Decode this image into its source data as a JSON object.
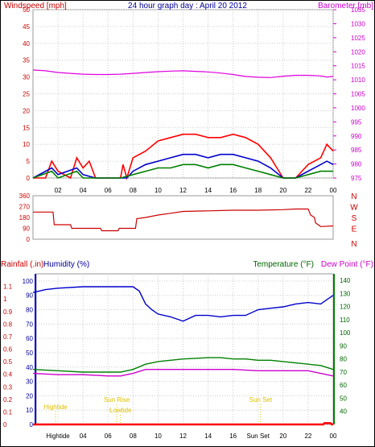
{
  "chart_data": [
    {
      "type": "line",
      "title": "24 hour graph day : April 20 2012",
      "ylabel": "Windspeed [mph]",
      "y2label": "Barometer [mb]",
      "ylim": [
        0,
        50
      ],
      "y2lim": [
        975,
        1035
      ],
      "xlim": [
        0,
        24
      ],
      "x_ticks": [
        "02",
        "04",
        "06",
        "08",
        "10",
        "12",
        "14",
        "16",
        "18",
        "20",
        "22",
        "00"
      ],
      "x_tick_hours": [
        2,
        4,
        6,
        8,
        10,
        12,
        14,
        16,
        18,
        20,
        22,
        24
      ],
      "y_ticks": [
        0,
        5,
        10,
        15,
        20,
        25,
        30,
        35,
        40,
        45,
        50
      ],
      "y2_ticks": [
        975,
        980,
        985,
        990,
        995,
        1000,
        1005,
        1010,
        1015,
        1020,
        1025,
        1030,
        1035
      ],
      "grid": true,
      "colors": {
        "gust": "#ff0000",
        "avg": "#0000cc",
        "low": "#008000",
        "barometer": "#e000e0"
      },
      "series": [
        {
          "axis": "right",
          "x": [
            0,
            1,
            2,
            3,
            4,
            5,
            6,
            7,
            8,
            9,
            10,
            11,
            12,
            13,
            14,
            15,
            16,
            17,
            18,
            19,
            20,
            21,
            22,
            23,
            23.5,
            24
          ],
          "values": [
            1013.5,
            1013.2,
            1012.6,
            1012.3,
            1012.0,
            1011.9,
            1011.9,
            1012.0,
            1012.3,
            1012.6,
            1012.9,
            1013.1,
            1013.2,
            1013.0,
            1012.8,
            1012.4,
            1011.9,
            1011.2,
            1010.9,
            1010.8,
            1011.3,
            1011.6,
            1011.6,
            1011.4,
            1011.0,
            1011.2
          ]
        },
        {
          "axis": "left",
          "x": [
            0,
            1,
            1.5,
            2,
            3,
            3.5,
            4,
            4.5,
            5,
            6,
            7,
            7.2,
            7.5,
            8,
            9,
            10,
            11,
            12,
            13,
            14,
            15,
            16,
            17,
            18,
            19,
            19.5,
            20,
            21,
            22,
            23,
            23.5,
            24
          ],
          "values": [
            0,
            0,
            5,
            2,
            0,
            6,
            3,
            5,
            0,
            0,
            0,
            4,
            0,
            6,
            8,
            11,
            12,
            13,
            13,
            12,
            12,
            13,
            12,
            10,
            6,
            3,
            0,
            0,
            4,
            6,
            10,
            8
          ]
        },
        {
          "axis": "left",
          "x": [
            0,
            1.5,
            2,
            3.5,
            4,
            5,
            7,
            7.5,
            8,
            9,
            10,
            11,
            12,
            13,
            14,
            15,
            16,
            17,
            18,
            19,
            20,
            21,
            22,
            23,
            23.5,
            24
          ],
          "values": [
            0,
            3,
            1,
            3,
            1,
            0,
            0,
            0,
            2,
            4,
            5,
            6,
            7,
            7,
            6,
            7,
            7,
            6,
            5,
            3,
            0,
            0,
            2,
            4,
            5,
            4
          ]
        },
        {
          "axis": "left",
          "x": [
            0,
            1.5,
            2,
            3.5,
            4,
            5,
            7,
            8,
            9,
            10,
            11,
            12,
            13,
            14,
            15,
            16,
            17,
            18,
            19,
            20,
            21,
            22,
            23,
            24
          ],
          "values": [
            0,
            2,
            0,
            2,
            0,
            0,
            0,
            1,
            2,
            3,
            3,
            4,
            4,
            3,
            4,
            4,
            3,
            2,
            1,
            0,
            0,
            1,
            2,
            2
          ]
        }
      ]
    },
    {
      "type": "line",
      "ylabel": "N W S E N",
      "ylim": [
        0,
        360
      ],
      "xlim": [
        0,
        24
      ],
      "y_ticks": [
        0,
        90,
        180,
        270,
        360
      ],
      "compass": [
        "N",
        "W",
        "S",
        "E",
        "N"
      ],
      "series": [
        {
          "x": [
            0,
            1.6,
            1.7,
            3,
            3.1,
            5.4,
            5.5,
            6.8,
            6.9,
            8.2,
            8.3,
            9,
            10,
            11,
            12,
            14,
            16,
            18,
            20,
            21,
            22,
            22.2,
            22.5,
            22.6,
            23,
            24
          ],
          "values": [
            225,
            225,
            120,
            120,
            90,
            90,
            70,
            70,
            90,
            90,
            170,
            180,
            200,
            215,
            230,
            235,
            240,
            240,
            245,
            250,
            250,
            200,
            180,
            135,
            105,
            110
          ]
        }
      ]
    },
    {
      "type": "line",
      "ylabel": "Rainfall (.in)",
      "ylabel2": "Humidity (%)",
      "y2label": "Temperature (°F)",
      "y3label": "Dew Point (°F)",
      "ylim": [
        0,
        1.2
      ],
      "hum_lim": [
        0,
        105
      ],
      "y2lim": [
        30,
        145
      ],
      "xlim": [
        0,
        24
      ],
      "rain_ticks": [
        0,
        0.1,
        0.2,
        0.3,
        0.4,
        0.5,
        0.6,
        0.7,
        0.8,
        0.9,
        1,
        1.1
      ],
      "hum_ticks": [
        0,
        10,
        20,
        30,
        40,
        50,
        60,
        70,
        80,
        90,
        100
      ],
      "temp_ticks": [
        40,
        50,
        60,
        70,
        80,
        90,
        100,
        110,
        120,
        130,
        140
      ],
      "x_ticks": [
        "Hightide",
        "04",
        "06",
        "08",
        "10",
        "12",
        "14",
        "16",
        "Sun Set",
        "20",
        "22",
        "00"
      ],
      "annotations": [
        {
          "text": "Hightide",
          "x": 1.8
        },
        {
          "text": "Sun Rise",
          "x": 6.7
        },
        {
          "text": "Lowtide",
          "x": 7.0
        },
        {
          "text": "Sun Set",
          "x": 18.2
        }
      ],
      "series": [
        {
          "name": "Humidity",
          "axis": "hum",
          "x": [
            0,
            1,
            2,
            4,
            5,
            6,
            7,
            8,
            8.5,
            9,
            9.5,
            10,
            11,
            12,
            13,
            14,
            15,
            16,
            17,
            18,
            19,
            20,
            21,
            22,
            23,
            23.5,
            24
          ],
          "values": [
            92,
            94,
            95,
            96,
            96,
            96,
            96,
            96,
            93,
            84,
            80,
            77,
            75,
            72,
            76,
            76,
            75,
            76,
            76,
            80,
            81,
            82,
            84,
            85,
            84,
            87,
            90
          ]
        },
        {
          "name": "Temperature",
          "axis": "temp",
          "x": [
            0,
            2,
            4,
            6,
            7,
            8,
            9,
            10,
            11,
            12,
            14,
            15,
            16,
            17,
            18,
            19,
            20,
            21,
            22,
            23,
            24
          ],
          "values": [
            72,
            71,
            70,
            70,
            70,
            72,
            76,
            78,
            79,
            80,
            81,
            81,
            80,
            80,
            79,
            79,
            78,
            77,
            76,
            75,
            72
          ]
        },
        {
          "name": "Dew Point",
          "axis": "temp",
          "x": [
            0,
            2,
            4,
            6,
            7,
            8,
            9,
            10,
            12,
            14,
            16,
            18,
            20,
            22,
            23,
            24
          ],
          "values": [
            69,
            68,
            68,
            67,
            67,
            69,
            72,
            72,
            72,
            72,
            72,
            71,
            71,
            71,
            69,
            67
          ]
        },
        {
          "name": "Rainfall",
          "axis": "rain",
          "x": [
            0,
            23.2,
            23.3,
            23.8,
            23.9,
            24
          ],
          "values": [
            0,
            0,
            0.01,
            0.01,
            0,
            0
          ]
        }
      ]
    }
  ]
}
